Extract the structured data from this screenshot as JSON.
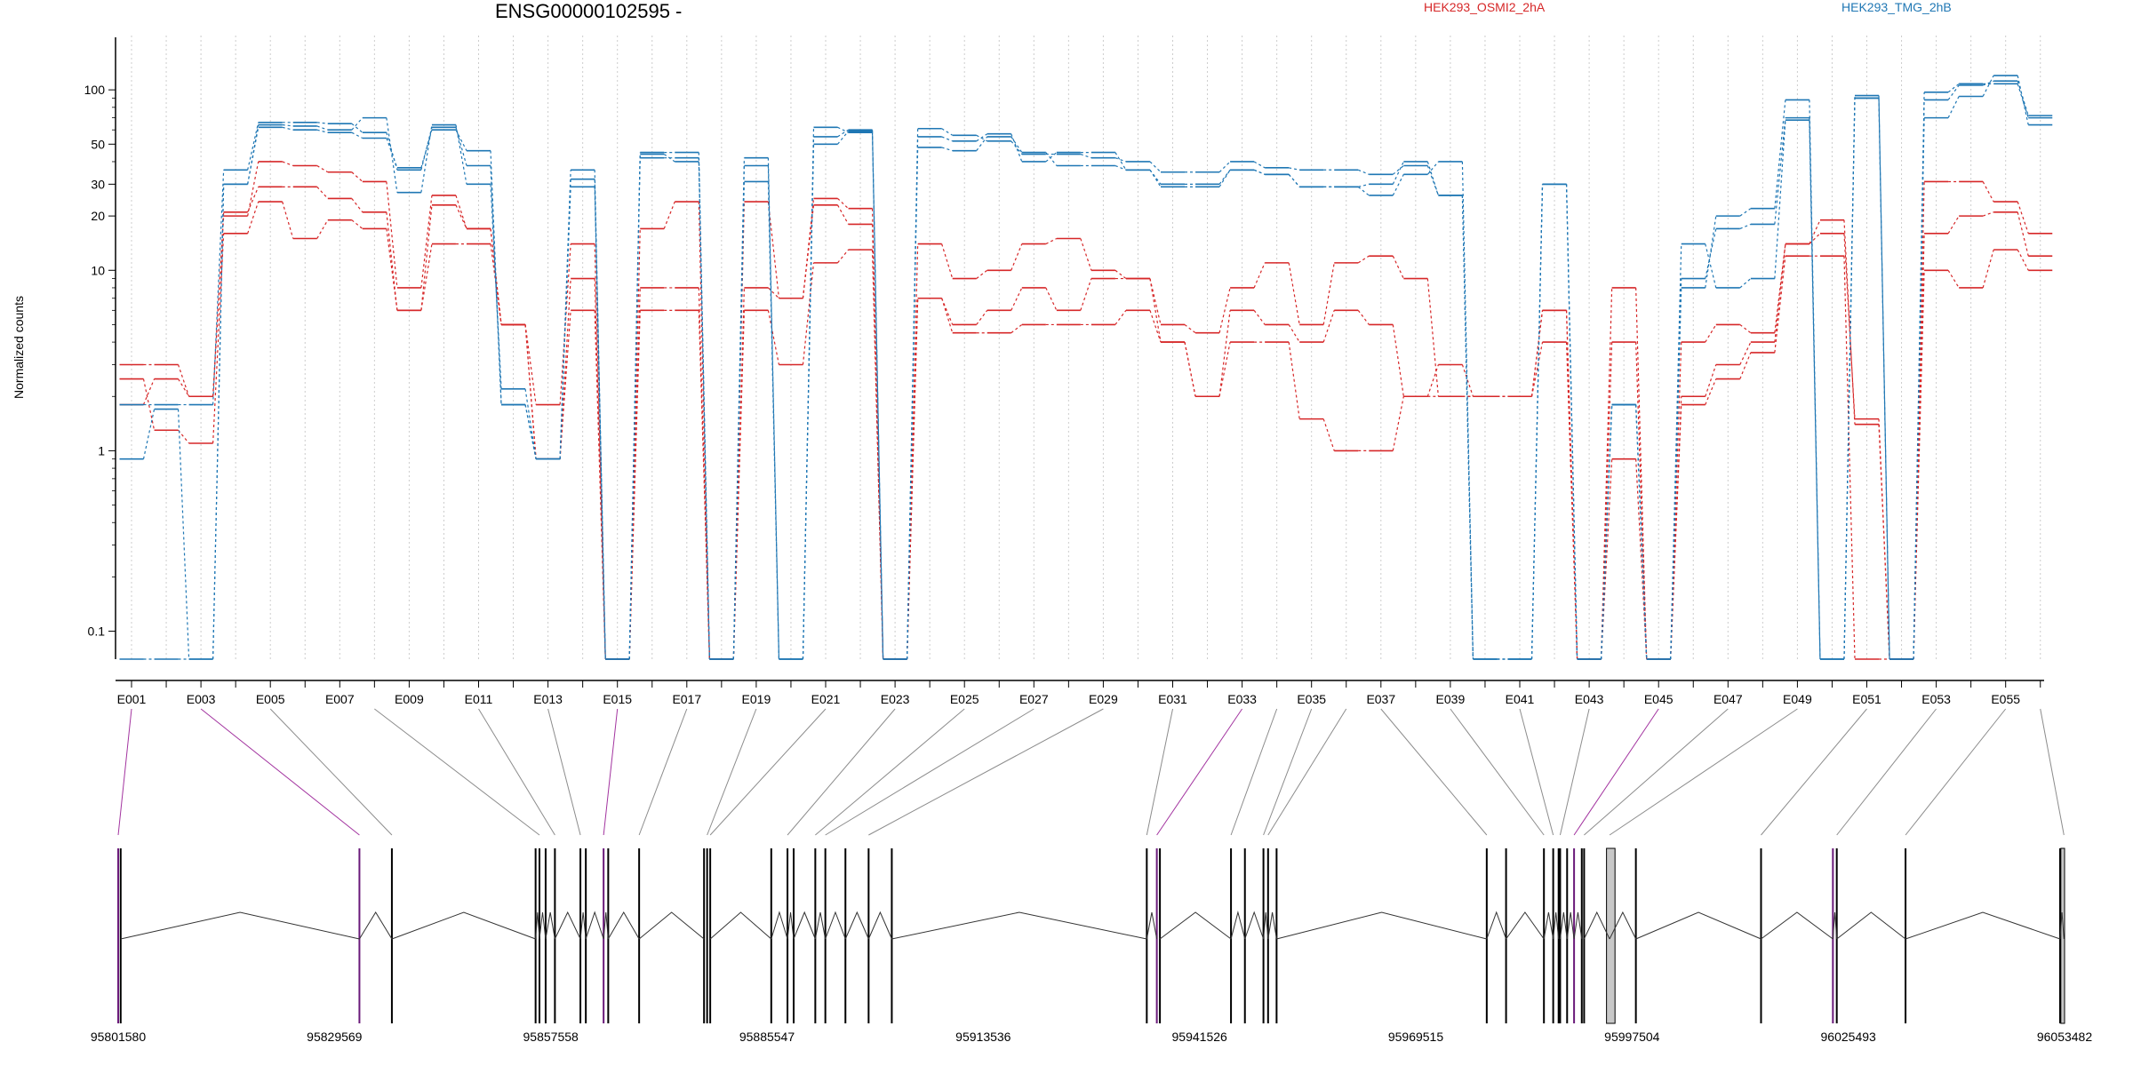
{
  "chart_data": {
    "type": "line",
    "title": "ENSG00000102595 -",
    "ylabel": "Normalized counts",
    "yscale": "log",
    "ylim": [
      0.07,
      200
    ],
    "yticks": [
      0.1,
      1,
      10,
      20,
      30,
      50,
      100
    ],
    "grid": "vertical dotted",
    "legend_position": "top-right",
    "exon_labels": [
      "E001",
      "E003",
      "E005",
      "E007",
      "E009",
      "E011",
      "E013",
      "E015",
      "E017",
      "E019",
      "E021",
      "E023",
      "E025",
      "E027",
      "E029",
      "E031",
      "E033",
      "E035",
      "E037",
      "E039",
      "E041",
      "E043",
      "E045",
      "E047",
      "E049",
      "E051",
      "E053",
      "E055"
    ],
    "num_exon_bins": 56,
    "series": [
      {
        "name": "HEK293_OSMI2_2hA",
        "color": "#d62728",
        "replicates": [
          [
            3,
            3,
            2,
            20,
            40,
            38,
            35,
            31,
            8,
            26,
            17,
            5,
            1.8,
            14,
            0.07,
            17,
            24,
            0.07,
            24,
            7,
            25,
            22,
            0.07,
            14,
            9,
            10,
            14,
            15,
            10,
            9,
            5,
            4.5,
            8,
            11,
            5,
            11,
            12,
            9,
            2,
            2,
            2,
            6,
            0.07,
            8,
            0.07,
            4,
            5,
            4.5,
            14,
            19,
            1.4,
            0.07,
            31,
            31,
            24,
            16
          ],
          [
            2.5,
            1.3,
            1.1,
            16,
            24,
            15,
            19,
            17,
            6,
            14,
            14,
            5,
            0.9,
            6,
            0.07,
            6,
            6,
            0.07,
            6,
            3,
            11,
            13,
            0.07,
            7,
            4.5,
            4.5,
            5,
            5,
            5,
            6,
            4,
            2,
            4,
            4,
            1.5,
            1,
            1,
            2,
            2,
            2,
            2,
            4,
            0.07,
            0.9,
            0.07,
            1.8,
            2.5,
            3.5,
            12,
            12,
            0.07,
            0.07,
            10,
            8,
            13,
            10
          ],
          [
            1.8,
            2.5,
            2,
            21,
            29,
            29,
            25,
            21,
            6,
            23,
            17,
            5,
            0.9,
            9,
            0.07,
            8,
            8,
            0.07,
            8,
            7,
            23,
            18,
            0.07,
            7,
            5,
            6,
            8,
            6,
            9,
            9,
            4,
            2,
            6,
            5,
            4,
            6,
            5,
            2,
            3,
            2,
            2,
            6,
            0.07,
            4,
            0.07,
            2,
            3,
            4,
            14,
            16,
            1.5,
            0.07,
            16,
            20,
            21,
            12
          ]
        ]
      },
      {
        "name": "HEK293_TMG_2hB",
        "color": "#1f77b4",
        "replicates": [
          [
            0.9,
            1.7,
            0.07,
            30,
            62,
            60,
            58,
            54,
            37,
            60,
            46,
            1.8,
            0.9,
            32,
            0.07,
            44,
            40,
            0.07,
            38,
            0.07,
            62,
            58,
            0.07,
            61,
            56,
            52,
            44,
            44,
            42,
            40,
            35,
            35,
            40,
            37,
            36,
            36,
            34,
            38,
            26,
            0.07,
            0.07,
            30,
            0.07,
            1.8,
            0.07,
            8,
            20,
            22,
            88,
            0.07,
            93,
            0.07,
            97,
            108,
            108,
            70
          ],
          [
            1.8,
            1.8,
            1.8,
            36,
            66,
            66,
            65,
            58,
            36,
            62,
            38,
            1.8,
            0.9,
            36,
            0.07,
            45,
            45,
            0.07,
            31,
            0.07,
            55,
            60,
            0.07,
            55,
            52,
            57,
            40,
            45,
            45,
            36,
            29,
            29,
            36,
            34,
            29,
            29,
            30,
            40,
            26,
            0.07,
            0.07,
            30,
            0.07,
            1.8,
            0.07,
            9,
            17,
            18,
            70,
            0.07,
            90,
            0.07,
            70,
            92,
            120,
            64
          ],
          [
            0.07,
            0.07,
            0.07,
            30,
            64,
            63,
            60,
            70,
            27,
            64,
            30,
            2.2,
            0.9,
            29,
            0.07,
            42,
            42,
            0.07,
            42,
            0.07,
            50,
            59,
            0.07,
            48,
            46,
            55,
            45,
            38,
            38,
            36,
            30,
            30,
            36,
            34,
            29,
            29,
            26,
            34,
            40,
            0.07,
            0.07,
            30,
            0.07,
            1.8,
            0.07,
            14,
            8,
            9,
            68,
            0.07,
            90,
            0.07,
            88,
            106,
            112,
            72
          ]
        ]
      }
    ],
    "genomic_axis": {
      "tick_labels": [
        "95801580",
        "95829569",
        "95857558",
        "95885547",
        "95913536",
        "95941526",
        "95969515",
        "95997504",
        "96025493",
        "96053482"
      ],
      "min": 95801580,
      "max": 96053482
    },
    "exon_positions": [
      95801580,
      95801900,
      95832800,
      95837000,
      95855600,
      95856100,
      95856900,
      95858100,
      95861400,
      95862100,
      95864400,
      95865000,
      95869000,
      95877400,
      95877800,
      95878200,
      95886100,
      95888200,
      95889000,
      95891800,
      95893100,
      95895700,
      95898700,
      95901700,
      95934700,
      95936000,
      95936400,
      95945600,
      95947400,
      95949800,
      95950400,
      95951500,
      95978700,
      95981200,
      95986100,
      95987300,
      95988000,
      95988200,
      95989100,
      95990000,
      95991000,
      95991300,
      95994600,
      95998000,
      96014200,
      96023500,
      96024000,
      96032900,
      96052900,
      96053400
    ],
    "highlighted_exons": [
      0,
      2,
      10,
      25,
      39,
      45
    ],
    "exon_bin_links": [
      0,
      2,
      4,
      7,
      10,
      12,
      14,
      16,
      18,
      20,
      22,
      24,
      26,
      28,
      30,
      32,
      33,
      34,
      35,
      36,
      38,
      40,
      42,
      44,
      46,
      48,
      50,
      52,
      54,
      55
    ],
    "legend_x": [
      1690,
      2190
    ]
  }
}
